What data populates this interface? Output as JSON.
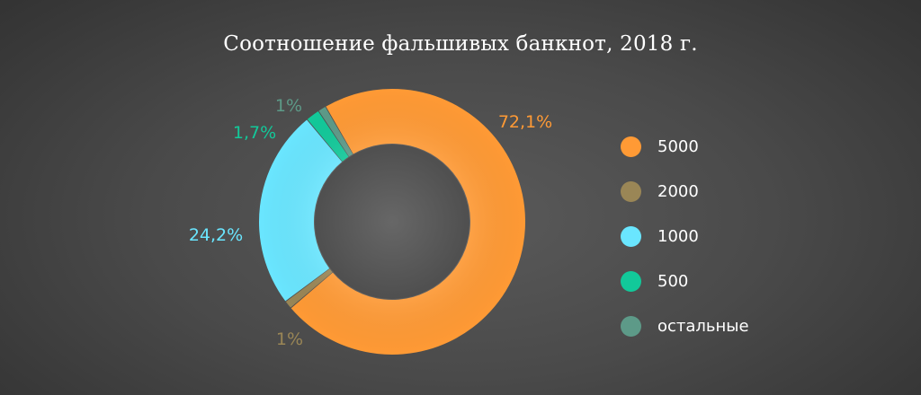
{
  "chart_data": {
    "type": "pie",
    "variant": "donut",
    "title": "Соотношение фальшивых банкнот, 2018 г.",
    "slices": [
      {
        "category": "5000",
        "value": 72.1,
        "label": "72,1%",
        "color": "#ff9a35"
      },
      {
        "category": "2000",
        "value": 1.0,
        "label": "1%",
        "color": "#9a8656"
      },
      {
        "category": "1000",
        "value": 24.2,
        "label": "24,2%",
        "color": "#6ae6ff"
      },
      {
        "category": "500",
        "value": 1.7,
        "label": "1,7%",
        "color": "#12c99a"
      },
      {
        "category": "остальные",
        "value": 1.0,
        "label": "1%",
        "color": "#5d9a88"
      }
    ],
    "legend_position": "right"
  }
}
